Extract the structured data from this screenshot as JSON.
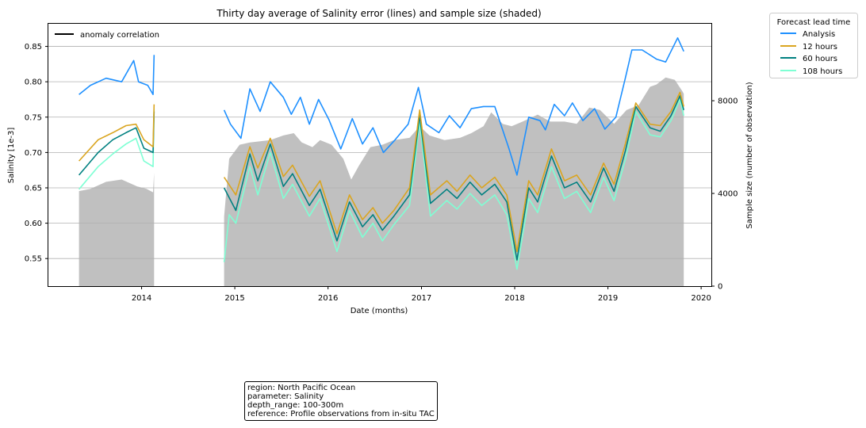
{
  "chart_data": {
    "type": "line",
    "title": "Thirty day average of Salinity error (lines) and sample size (shaded)",
    "xlabel": "Date (months)",
    "ylabel": "Salinity [1e-3]",
    "y2label": "Sample size (number of observation)",
    "xlim": [
      "2013-01-01",
      "2020-02-10"
    ],
    "ylim": [
      0.511,
      0.882
    ],
    "y2lim": [
      0,
      11320
    ],
    "xticks": [
      "2014",
      "2015",
      "2016",
      "2017",
      "2018",
      "2019",
      "2020"
    ],
    "yticks": [
      "0.55",
      "0.60",
      "0.65",
      "0.70",
      "0.75",
      "0.80",
      "0.85"
    ],
    "y2ticks": [
      "0",
      "4000",
      "8000"
    ],
    "grid": "horizontal",
    "legend_left": {
      "placement": "top-left",
      "entries": [
        "anomaly correlation"
      ]
    },
    "legend_right": {
      "placement": "outside-right",
      "title": "Forecast lead time",
      "entries": [
        "Analysis",
        "12 hours",
        "60 hours",
        "108 hours"
      ]
    },
    "series": [
      {
        "name": "Analysis",
        "color": "#1e90ff",
        "points": [
          [
            "2013-05-01",
            0.782
          ],
          [
            "2013-06-15",
            0.795
          ],
          [
            "2013-08-15",
            0.805
          ],
          [
            "2013-10-15",
            0.8
          ],
          [
            "2013-12-01",
            0.83
          ],
          [
            "2013-12-20",
            0.8
          ],
          [
            "2014-01-25",
            0.795
          ],
          [
            "2014-02-15",
            0.782
          ],
          [
            "2014-02-19",
            0.838
          ],
          null,
          [
            "2014-11-20",
            0.76
          ],
          [
            "2014-12-15",
            0.74
          ],
          [
            "2015-01-25",
            0.72
          ],
          [
            "2015-03-01",
            0.79
          ],
          [
            "2015-04-10",
            0.758
          ],
          [
            "2015-05-20",
            0.8
          ],
          [
            "2015-07-10",
            0.778
          ],
          [
            "2015-08-10",
            0.754
          ],
          [
            "2015-09-15",
            0.778
          ],
          [
            "2015-10-20",
            0.74
          ],
          [
            "2015-11-25",
            0.775
          ],
          [
            "2016-01-05",
            0.746
          ],
          [
            "2016-02-20",
            0.705
          ],
          [
            "2016-04-05",
            0.748
          ],
          [
            "2016-05-15",
            0.712
          ],
          [
            "2016-06-25",
            0.735
          ],
          [
            "2016-08-05",
            0.7
          ],
          [
            "2016-09-15",
            0.716
          ],
          [
            "2016-11-10",
            0.74
          ],
          [
            "2016-12-20",
            0.792
          ],
          [
            "2017-01-20",
            0.74
          ],
          [
            "2017-03-10",
            0.728
          ],
          [
            "2017-04-20",
            0.752
          ],
          [
            "2017-06-01",
            0.735
          ],
          [
            "2017-07-15",
            0.762
          ],
          [
            "2017-09-01",
            0.765
          ],
          [
            "2017-10-15",
            0.765
          ],
          [
            "2017-12-10",
            0.705
          ],
          [
            "2018-01-10",
            0.668
          ],
          [
            "2018-02-25",
            0.75
          ],
          [
            "2018-04-10",
            0.745
          ],
          [
            "2018-05-01",
            0.732
          ],
          [
            "2018-06-05",
            0.768
          ],
          [
            "2018-07-15",
            0.752
          ],
          [
            "2018-08-15",
            0.77
          ],
          [
            "2018-09-25",
            0.745
          ],
          [
            "2018-11-10",
            0.762
          ],
          [
            "2018-12-20",
            0.733
          ],
          [
            "2019-02-01",
            0.75
          ],
          [
            "2019-03-10",
            0.805
          ],
          [
            "2019-04-05",
            0.845
          ],
          [
            "2019-05-15",
            0.845
          ],
          [
            "2019-07-10",
            0.832
          ],
          [
            "2019-08-15",
            0.828
          ],
          [
            "2019-10-01",
            0.862
          ],
          [
            "2019-10-25",
            0.843
          ]
        ]
      },
      {
        "name": "12 hours",
        "color": "#daa520",
        "points": [
          [
            "2013-05-01",
            0.688
          ],
          [
            "2013-07-15",
            0.718
          ],
          [
            "2013-09-10",
            0.728
          ],
          [
            "2013-11-01",
            0.738
          ],
          [
            "2013-12-10",
            0.74
          ],
          [
            "2014-01-10",
            0.718
          ],
          [
            "2014-02-15",
            0.708
          ],
          [
            "2014-02-19",
            0.768
          ],
          null,
          [
            "2014-11-20",
            0.665
          ],
          [
            "2015-01-05",
            0.64
          ],
          [
            "2015-03-01",
            0.708
          ],
          [
            "2015-04-01",
            0.678
          ],
          [
            "2015-05-20",
            0.72
          ],
          [
            "2015-07-10",
            0.666
          ],
          [
            "2015-08-15",
            0.682
          ],
          [
            "2015-10-20",
            0.638
          ],
          [
            "2015-12-01",
            0.66
          ],
          [
            "2016-02-05",
            0.585
          ],
          [
            "2016-03-25",
            0.64
          ],
          [
            "2016-05-15",
            0.605
          ],
          [
            "2016-06-25",
            0.622
          ],
          [
            "2016-08-01",
            0.6
          ],
          [
            "2016-09-15",
            0.618
          ],
          [
            "2016-11-15",
            0.65
          ],
          [
            "2016-12-25",
            0.76
          ],
          [
            "2017-02-05",
            0.64
          ],
          [
            "2017-04-10",
            0.66
          ],
          [
            "2017-05-20",
            0.645
          ],
          [
            "2017-07-10",
            0.668
          ],
          [
            "2017-08-25",
            0.65
          ],
          [
            "2017-10-15",
            0.665
          ],
          [
            "2017-12-01",
            0.64
          ],
          [
            "2018-01-10",
            0.56
          ],
          [
            "2018-02-25",
            0.66
          ],
          [
            "2018-04-01",
            0.64
          ],
          [
            "2018-05-25",
            0.705
          ],
          [
            "2018-07-15",
            0.66
          ],
          [
            "2018-09-01",
            0.668
          ],
          [
            "2018-10-25",
            0.64
          ],
          [
            "2018-12-15",
            0.685
          ],
          [
            "2019-01-25",
            0.655
          ],
          [
            "2019-03-10",
            0.712
          ],
          [
            "2019-04-20",
            0.77
          ],
          [
            "2019-06-15",
            0.74
          ],
          [
            "2019-07-25",
            0.738
          ],
          [
            "2019-09-05",
            0.758
          ],
          [
            "2019-10-10",
            0.785
          ],
          [
            "2019-10-25",
            0.765
          ]
        ]
      },
      {
        "name": "60 hours",
        "color": "#008080",
        "points": [
          [
            "2013-05-01",
            0.668
          ],
          [
            "2013-07-15",
            0.7
          ],
          [
            "2013-09-10",
            0.718
          ],
          [
            "2013-11-01",
            0.728
          ],
          [
            "2013-12-10",
            0.735
          ],
          [
            "2014-01-10",
            0.706
          ],
          [
            "2014-02-15",
            0.7
          ],
          [
            "2014-02-19",
            0.758
          ],
          null,
          [
            "2014-11-20",
            0.65
          ],
          [
            "2015-01-05",
            0.618
          ],
          [
            "2015-03-01",
            0.698
          ],
          [
            "2015-04-01",
            0.66
          ],
          [
            "2015-05-20",
            0.712
          ],
          [
            "2015-07-10",
            0.652
          ],
          [
            "2015-08-15",
            0.67
          ],
          [
            "2015-10-20",
            0.625
          ],
          [
            "2015-12-01",
            0.648
          ],
          [
            "2016-02-05",
            0.575
          ],
          [
            "2016-03-25",
            0.63
          ],
          [
            "2016-05-15",
            0.595
          ],
          [
            "2016-06-25",
            0.612
          ],
          [
            "2016-08-01",
            0.59
          ],
          [
            "2016-09-15",
            0.61
          ],
          [
            "2016-11-15",
            0.64
          ],
          [
            "2016-12-25",
            0.752
          ],
          [
            "2017-02-05",
            0.628
          ],
          [
            "2017-04-10",
            0.648
          ],
          [
            "2017-05-20",
            0.635
          ],
          [
            "2017-07-10",
            0.658
          ],
          [
            "2017-08-25",
            0.64
          ],
          [
            "2017-10-15",
            0.655
          ],
          [
            "2017-12-01",
            0.63
          ],
          [
            "2018-01-10",
            0.548
          ],
          [
            "2018-02-25",
            0.65
          ],
          [
            "2018-04-01",
            0.63
          ],
          [
            "2018-05-25",
            0.695
          ],
          [
            "2018-07-15",
            0.65
          ],
          [
            "2018-09-01",
            0.658
          ],
          [
            "2018-10-25",
            0.63
          ],
          [
            "2018-12-15",
            0.678
          ],
          [
            "2019-01-25",
            0.645
          ],
          [
            "2019-03-10",
            0.702
          ],
          [
            "2019-04-20",
            0.765
          ],
          [
            "2019-06-15",
            0.735
          ],
          [
            "2019-07-25",
            0.73
          ],
          [
            "2019-09-05",
            0.752
          ],
          [
            "2019-10-10",
            0.78
          ],
          [
            "2019-10-25",
            0.76
          ]
        ]
      },
      {
        "name": "108 hours",
        "color": "#7fffd4",
        "points": [
          [
            "2013-05-01",
            0.648
          ],
          [
            "2013-07-15",
            0.68
          ],
          [
            "2013-09-10",
            0.698
          ],
          [
            "2013-11-01",
            0.712
          ],
          [
            "2013-12-10",
            0.72
          ],
          [
            "2014-01-10",
            0.688
          ],
          [
            "2014-02-15",
            0.68
          ],
          [
            "2014-02-19",
            0.762
          ],
          null,
          [
            "2014-11-20",
            0.545
          ],
          [
            "2014-12-10",
            0.612
          ],
          [
            "2015-01-05",
            0.6
          ],
          [
            "2015-03-01",
            0.68
          ],
          [
            "2015-04-01",
            0.64
          ],
          [
            "2015-05-20",
            0.7
          ],
          [
            "2015-07-10",
            0.635
          ],
          [
            "2015-08-15",
            0.655
          ],
          [
            "2015-10-20",
            0.61
          ],
          [
            "2015-12-01",
            0.635
          ],
          [
            "2016-02-05",
            0.56
          ],
          [
            "2016-03-25",
            0.618
          ],
          [
            "2016-05-15",
            0.58
          ],
          [
            "2016-06-25",
            0.6
          ],
          [
            "2016-08-01",
            0.575
          ],
          [
            "2016-09-15",
            0.598
          ],
          [
            "2016-11-15",
            0.625
          ],
          [
            "2016-12-25",
            0.742
          ],
          [
            "2017-02-05",
            0.61
          ],
          [
            "2017-04-10",
            0.632
          ],
          [
            "2017-05-20",
            0.62
          ],
          [
            "2017-07-10",
            0.642
          ],
          [
            "2017-08-25",
            0.625
          ],
          [
            "2017-10-15",
            0.64
          ],
          [
            "2017-12-01",
            0.612
          ],
          [
            "2018-01-10",
            0.535
          ],
          [
            "2018-02-25",
            0.635
          ],
          [
            "2018-04-01",
            0.615
          ],
          [
            "2018-05-25",
            0.68
          ],
          [
            "2018-07-15",
            0.635
          ],
          [
            "2018-09-01",
            0.645
          ],
          [
            "2018-10-25",
            0.615
          ],
          [
            "2018-12-15",
            0.665
          ],
          [
            "2019-01-25",
            0.632
          ],
          [
            "2019-03-10",
            0.69
          ],
          [
            "2019-04-20",
            0.758
          ],
          [
            "2019-06-15",
            0.725
          ],
          [
            "2019-07-25",
            0.722
          ],
          [
            "2019-09-05",
            0.745
          ],
          [
            "2019-10-10",
            0.775
          ],
          [
            "2019-10-25",
            0.752
          ]
        ]
      }
    ],
    "sample_size": {
      "color": "#c0c0c0",
      "points": [
        [
          "2013-05-01",
          4100
        ],
        [
          "2013-06-15",
          4200
        ],
        [
          "2013-08-15",
          4500
        ],
        [
          "2013-10-15",
          4600
        ],
        [
          "2013-12-15",
          4300
        ],
        [
          "2014-01-20",
          4200
        ],
        [
          "2014-02-15",
          4050
        ],
        [
          "2014-02-19",
          4900
        ],
        null,
        [
          "2014-11-20",
          3000
        ],
        [
          "2014-12-10",
          5500
        ],
        [
          "2015-01-20",
          6100
        ],
        [
          "2015-03-01",
          6200
        ],
        [
          "2015-04-10",
          6250
        ],
        [
          "2015-05-20",
          6300
        ],
        [
          "2015-07-10",
          6500
        ],
        [
          "2015-08-20",
          6600
        ],
        [
          "2015-09-20",
          6200
        ],
        [
          "2015-11-01",
          6000
        ],
        [
          "2015-12-01",
          6300
        ],
        [
          "2016-01-15",
          6100
        ],
        [
          "2016-03-01",
          5500
        ],
        [
          "2016-04-01",
          4600
        ],
        [
          "2016-05-01",
          5200
        ],
        [
          "2016-06-15",
          6000
        ],
        [
          "2016-08-01",
          6100
        ],
        [
          "2016-09-15",
          6300
        ],
        [
          "2016-11-15",
          6400
        ],
        [
          "2016-12-25",
          6900
        ],
        [
          "2017-02-01",
          6500
        ],
        [
          "2017-04-01",
          6300
        ],
        [
          "2017-06-01",
          6400
        ],
        [
          "2017-07-15",
          6600
        ],
        [
          "2017-09-01",
          6900
        ],
        [
          "2017-10-01",
          7500
        ],
        [
          "2017-11-15",
          7000
        ],
        [
          "2017-12-20",
          6900
        ],
        [
          "2018-02-01",
          7100
        ],
        [
          "2018-04-01",
          7400
        ],
        [
          "2018-05-20",
          7100
        ],
        [
          "2018-07-15",
          7100
        ],
        [
          "2018-09-01",
          7000
        ],
        [
          "2018-10-20",
          7700
        ],
        [
          "2018-12-01",
          7600
        ],
        [
          "2019-01-25",
          7000
        ],
        [
          "2019-03-15",
          7600
        ],
        [
          "2019-05-01",
          7800
        ],
        [
          "2019-06-15",
          8600
        ],
        [
          "2019-07-10",
          8700
        ],
        [
          "2019-08-15",
          9000
        ],
        [
          "2019-09-20",
          8900
        ],
        [
          "2019-10-20",
          8400
        ],
        [
          "2019-10-25",
          8300
        ]
      ]
    }
  },
  "info_box": {
    "line1": "region: North Pacific Ocean",
    "line2": "parameter: Salinity",
    "line3": "depth_range: 100-300m",
    "line4": "reference: Profile observations from in-situ TAC"
  }
}
